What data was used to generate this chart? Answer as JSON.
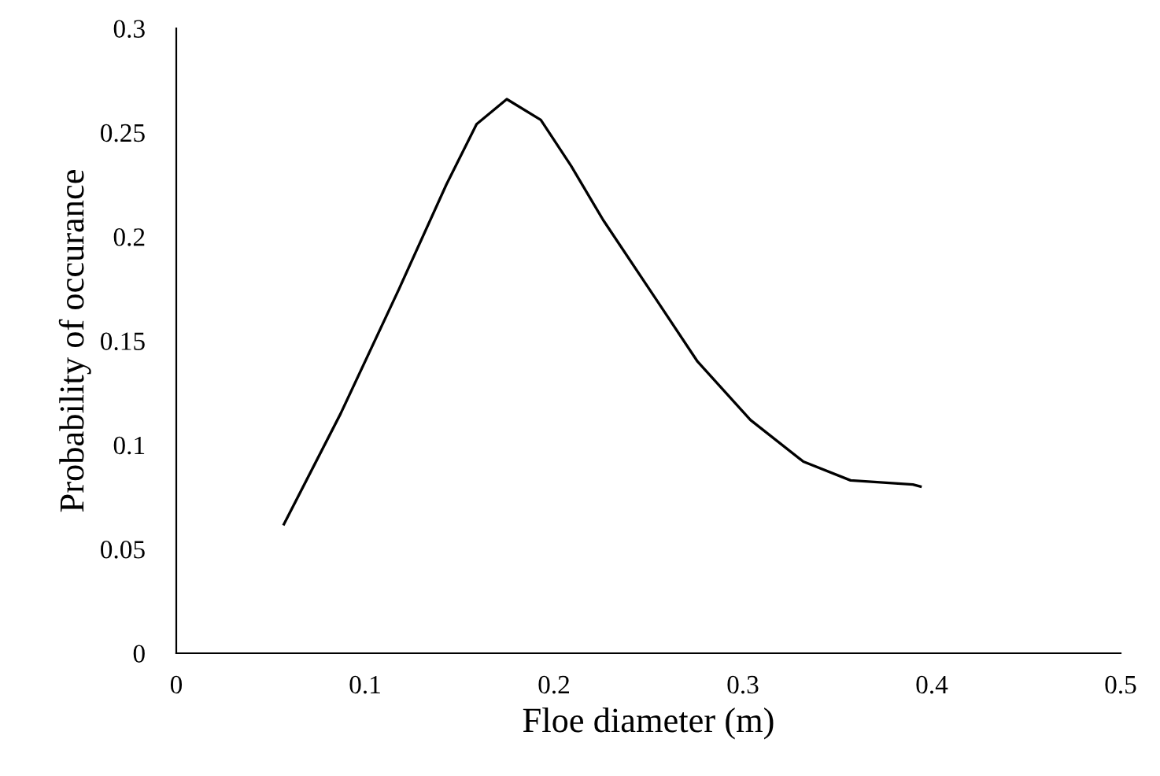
{
  "chart_data": {
    "type": "line",
    "xlabel": "Floe diameter (m)",
    "ylabel": "Probability of occurance",
    "series": [
      {
        "color": "#000000",
        "x": [
          0.057,
          0.087,
          0.118,
          0.143,
          0.159,
          0.175,
          0.193,
          0.209,
          0.226,
          0.254,
          0.276,
          0.304,
          0.332,
          0.357,
          0.39,
          0.394
        ],
        "values": [
          0.062,
          0.115,
          0.175,
          0.225,
          0.254,
          0.266,
          0.256,
          0.234,
          0.208,
          0.17,
          0.14,
          0.112,
          0.092,
          0.083,
          0.081,
          0.08
        ]
      }
    ],
    "xlim": [
      0,
      0.5
    ],
    "xticks": [
      0,
      0.1,
      0.2,
      0.3,
      0.4,
      0.5
    ],
    "ylim": [
      0,
      0.3
    ],
    "yticks": [
      0,
      0.05,
      0.1,
      0.15,
      0.2,
      0.25,
      0.3
    ],
    "grid": false,
    "legend": false,
    "marker": "none",
    "line_style": "solid"
  }
}
